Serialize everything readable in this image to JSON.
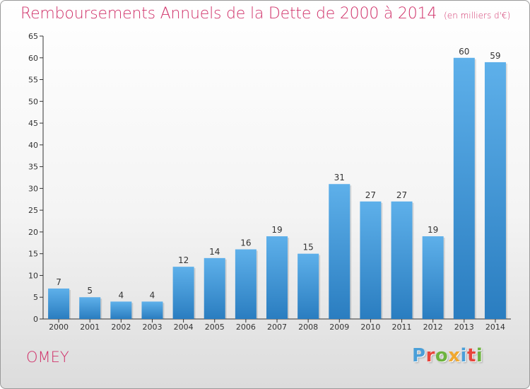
{
  "title": "Remboursements Annuels de la Dette de 2000 à 2014",
  "unit_note": "(en milliers d'€)",
  "commune": "OMEY",
  "logo": {
    "text": "Proxiti",
    "letter_colors": [
      "#4a9fd8",
      "#e8453c",
      "#6db33f",
      "#f0a830",
      "#4a9fd8",
      "#e8453c",
      "#6db33f"
    ]
  },
  "colors": {
    "title": "#d0326a",
    "bar_light": "#5eb0ea",
    "bar_dark": "#2a7dc0",
    "axis": "#333333"
  },
  "chart_data": {
    "type": "bar",
    "title": "Remboursements Annuels de la Dette de 2000 à 2014",
    "categories": [
      "2000",
      "2001",
      "2002",
      "2003",
      "2004",
      "2005",
      "2006",
      "2007",
      "2008",
      "2009",
      "2010",
      "2011",
      "2012",
      "2013",
      "2014"
    ],
    "values": [
      7,
      5,
      4,
      4,
      12,
      14,
      16,
      19,
      15,
      31,
      27,
      27,
      19,
      60,
      59
    ],
    "ylim": [
      0,
      65
    ],
    "yticks": [
      0,
      5,
      10,
      15,
      20,
      25,
      30,
      35,
      40,
      45,
      50,
      55,
      60,
      65
    ],
    "grid": false,
    "data_labels": true
  }
}
